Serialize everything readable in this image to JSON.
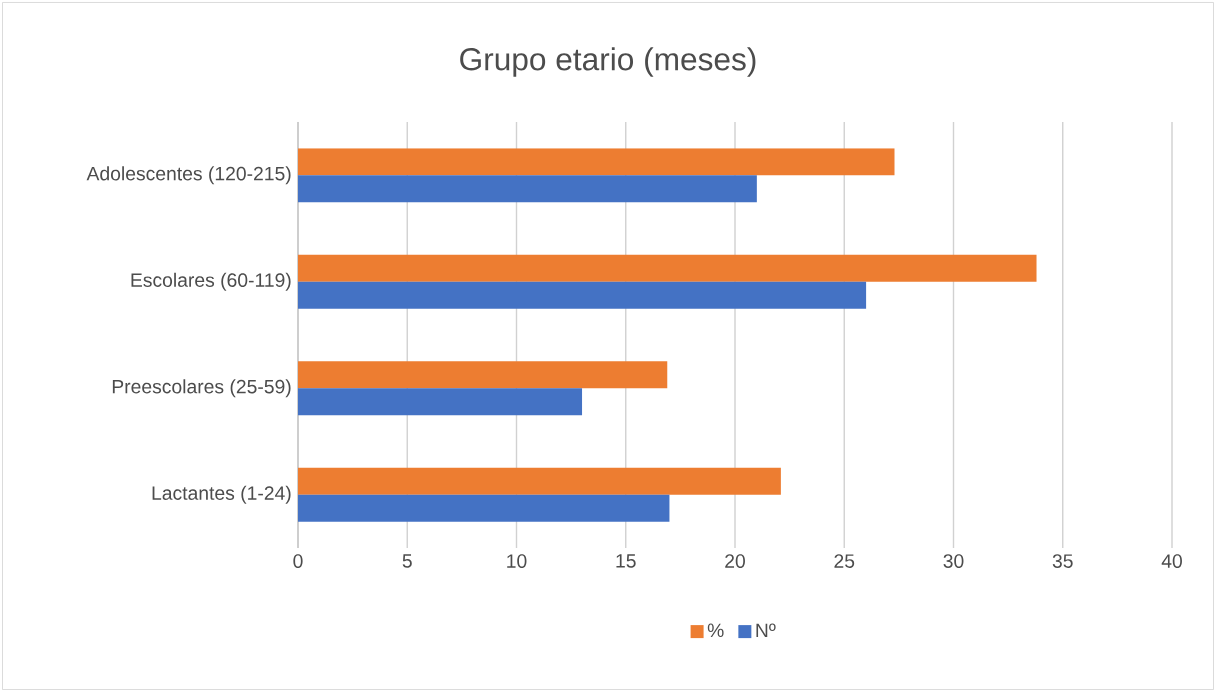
{
  "chart_data": {
    "type": "bar",
    "orientation": "horizontal",
    "title": "Grupo etario (meses)",
    "categories": [
      "Adolescentes (120-215)",
      "Escolares (60-119)",
      "Preescolares (25-59)",
      "Lactantes (1-24)"
    ],
    "series": [
      {
        "name": "%",
        "color": "#ed7d31",
        "values": [
          27.3,
          33.8,
          16.9,
          22.1
        ]
      },
      {
        "name": "Nº",
        "color": "#4472c4",
        "values": [
          21,
          26,
          13,
          17
        ]
      }
    ],
    "xlim": [
      0,
      40
    ],
    "xticks": [
      0,
      5,
      10,
      15,
      20,
      25,
      30,
      35,
      40
    ],
    "grid": "x",
    "legend": "bottom"
  }
}
